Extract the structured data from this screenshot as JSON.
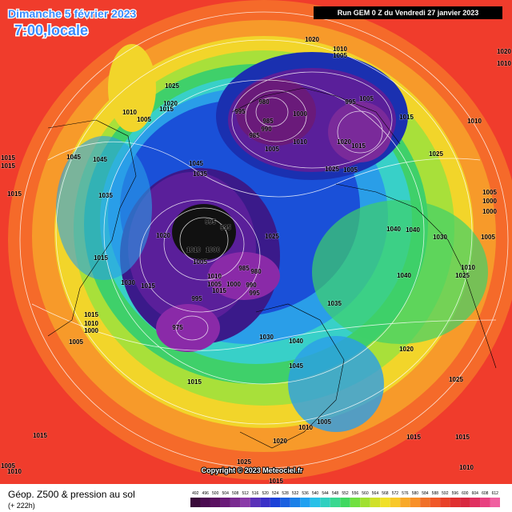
{
  "header": {
    "date": "Dimanche 5 février 2023",
    "time": "7:00,locale",
    "run": "Run GEM 0 Z du Vendredi 27 janvier 2023"
  },
  "footer": {
    "title": "Géop. Z500 & pression au sol",
    "lead": "(+ 222h)",
    "copyright": "Copyright © 2023 Meteociel.fr"
  },
  "legend": {
    "labels": [
      "492",
      "496",
      "500",
      "504",
      "508",
      "512",
      "516",
      "520",
      "524",
      "528",
      "532",
      "536",
      "540",
      "544",
      "548",
      "552",
      "556",
      "560",
      "564",
      "568",
      "572",
      "576",
      "580",
      "584",
      "588",
      "592",
      "596",
      "600",
      "604",
      "608",
      "612"
    ]
  },
  "isobar_labels": [
    "1020",
    "1010",
    "1005",
    "1025",
    "1020",
    "1010",
    "980",
    "995",
    "1005",
    "985",
    "1000",
    "990",
    "995",
    "1010",
    "1020",
    "1015",
    "985",
    "1005",
    "1025",
    "1005",
    "1015",
    "1010",
    "1025",
    "1020",
    "1015",
    "1010",
    "1005",
    "1045",
    "1045",
    "1045",
    "1035",
    "1035",
    "1015",
    "1015",
    "1015",
    "995",
    "995",
    "1020",
    "1025",
    "1010",
    "1000",
    "1005",
    "1015",
    "985",
    "980",
    "1010",
    "1000",
    "990",
    "995",
    "1005",
    "1015",
    "1030",
    "1015",
    "995",
    "1040",
    "1040",
    "1030",
    "1005",
    "1005",
    "1000",
    "1000",
    "1040",
    "1035",
    "1015",
    "1010",
    "1000",
    "1005",
    "975",
    "1030",
    "1040",
    "1045",
    "1020",
    "1015",
    "1005",
    "1010",
    "1020",
    "1015",
    "1015",
    "1015",
    "1010",
    "1025",
    "1015",
    "1005",
    "1010",
    "1010",
    "1025",
    "1025"
  ]
}
